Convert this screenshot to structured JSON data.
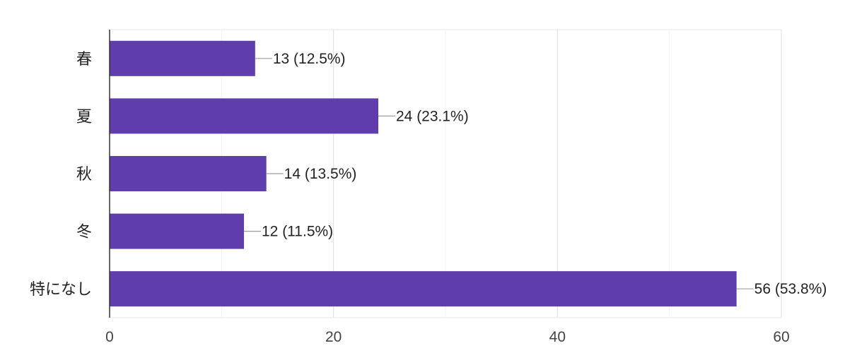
{
  "chart_data": {
    "type": "bar",
    "orientation": "horizontal",
    "categories": [
      "春",
      "夏",
      "秋",
      "冬",
      "特になし"
    ],
    "values": [
      13,
      24,
      14,
      12,
      56
    ],
    "data_labels": [
      "13 (12.5%)",
      "24 (23.1%)",
      "14 (13.5%)",
      "12 (11.5%)",
      "56 (53.8%)"
    ],
    "xlim": [
      0,
      60
    ],
    "x_ticks": [
      0,
      20,
      40,
      60
    ],
    "x_minor_gridlines": [
      10,
      30,
      50
    ],
    "grid": true,
    "bar_color": "#5f3dac"
  }
}
